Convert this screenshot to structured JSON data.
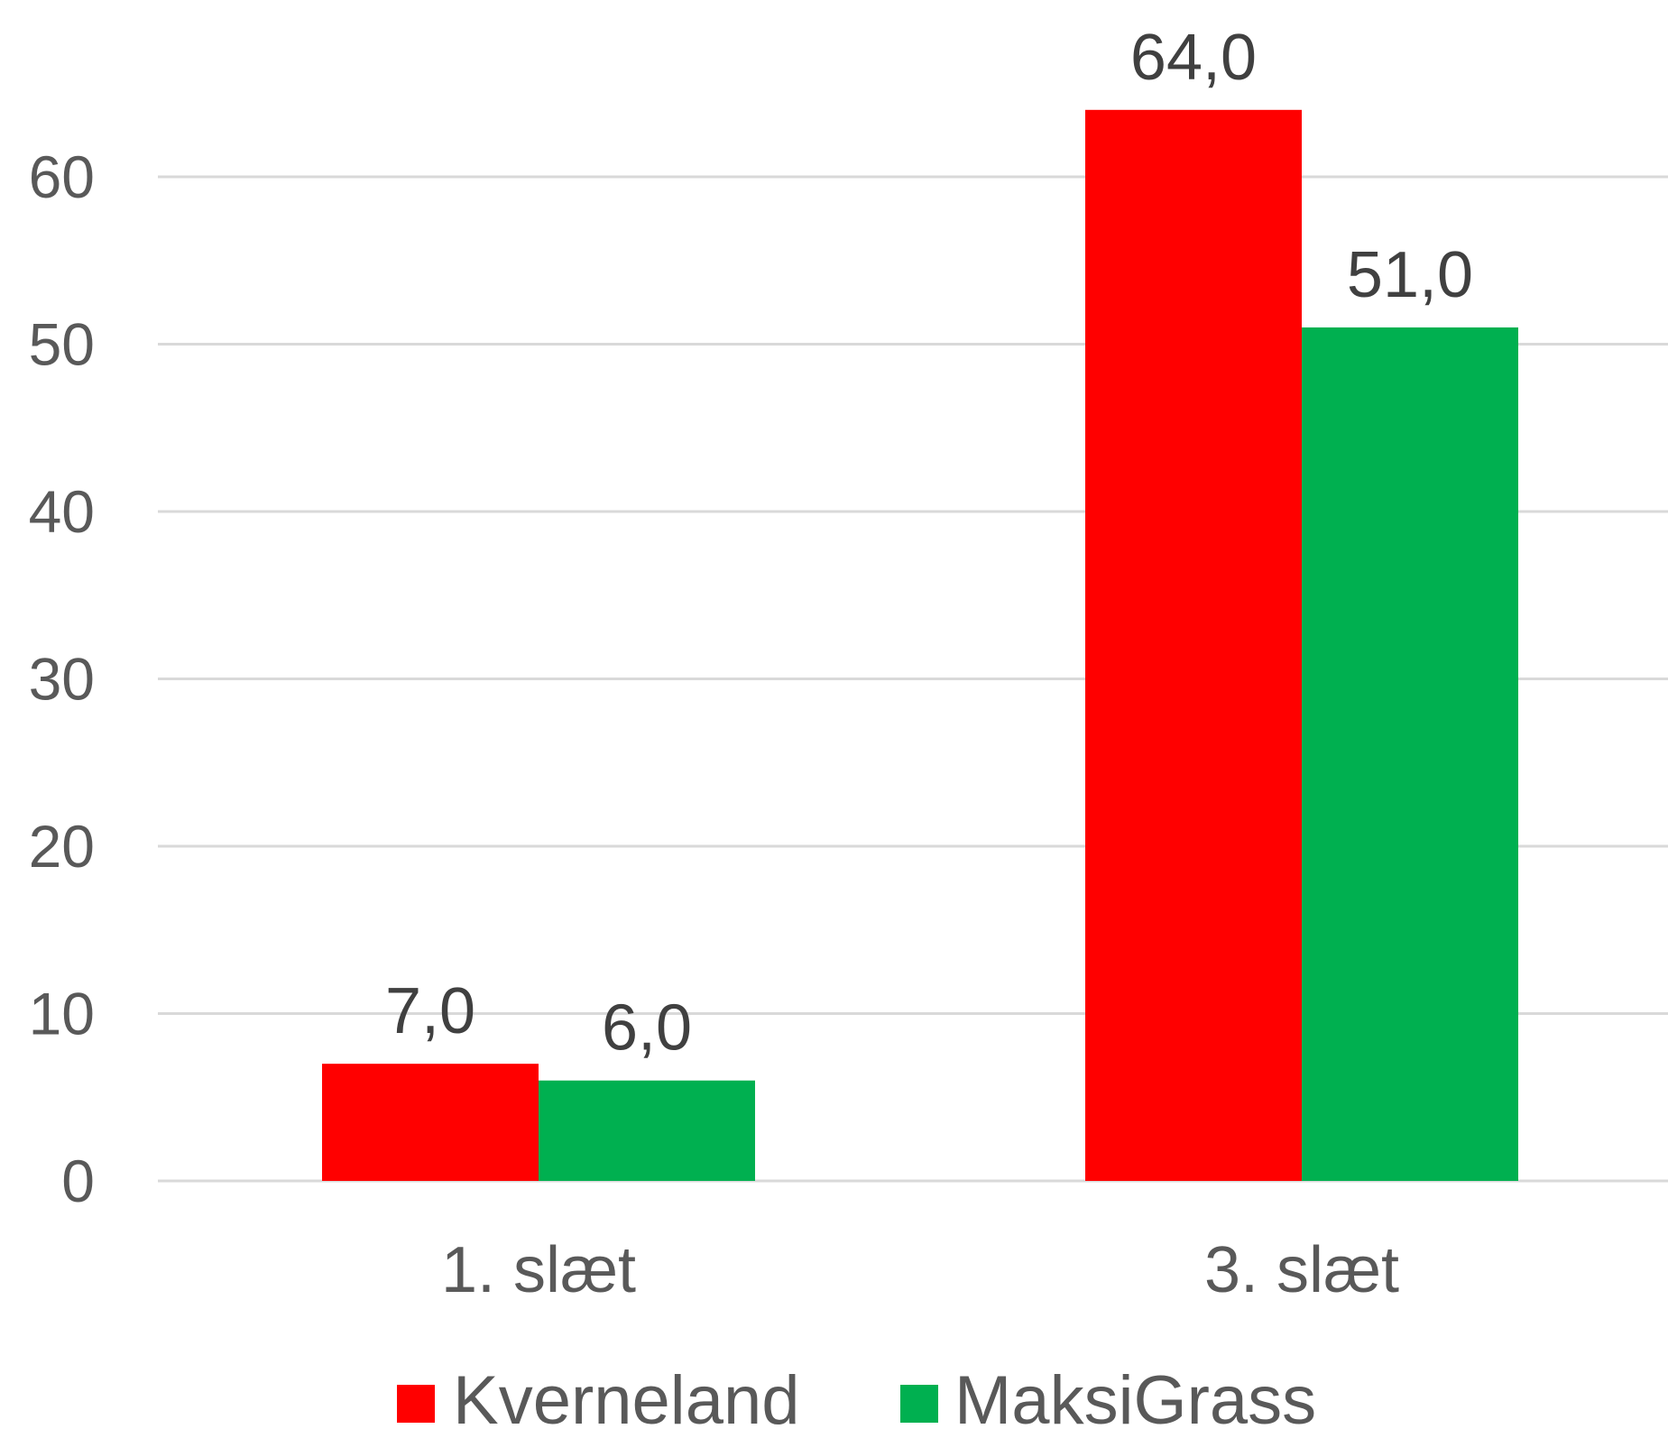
{
  "chart_data": {
    "type": "bar",
    "categories": [
      "1. slæt",
      "3. slæt"
    ],
    "series": [
      {
        "name": "Kverneland",
        "values": [
          7.0,
          64.0
        ],
        "labels": [
          "7,0",
          "64,0"
        ],
        "color": "#ff0000"
      },
      {
        "name": "MaksiGrass",
        "values": [
          6.0,
          51.0
        ],
        "labels": [
          "6,0",
          "51,0"
        ],
        "color": "#00b050"
      }
    ],
    "yticks": [
      "0",
      "10",
      "20",
      "30",
      "40",
      "50",
      "60"
    ],
    "ylim": [
      0,
      60
    ],
    "grid": true,
    "legend": "bottom"
  }
}
